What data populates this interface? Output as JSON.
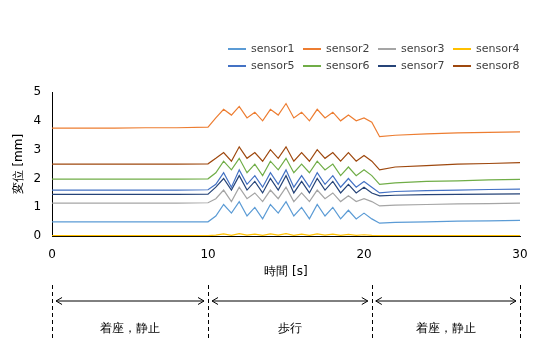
{
  "chart_data": {
    "type": "line",
    "x_label": "時間 [s]",
    "y_label": "変位 [mm]",
    "xlim": [
      0,
      30
    ],
    "xticks": [
      0,
      10,
      20,
      30
    ],
    "ylim": [
      0,
      5
    ],
    "yticks": [
      0,
      1,
      2,
      3,
      4,
      5
    ],
    "grid": false,
    "legend": "upper right",
    "x": [
      0,
      2,
      4,
      6,
      8,
      10,
      10.5,
      11,
      11.5,
      12,
      12.5,
      13,
      13.5,
      14,
      14.5,
      15,
      15.5,
      16,
      16.5,
      17,
      17.5,
      18,
      18.5,
      19,
      19.5,
      20,
      20.5,
      21,
      22,
      24,
      26,
      28,
      30
    ],
    "series": [
      {
        "name": "sensor1",
        "color": "#5b9bd5",
        "values": [
          0.5,
          0.5,
          0.5,
          0.5,
          0.5,
          0.5,
          0.7,
          1.1,
          0.8,
          1.2,
          0.7,
          1.0,
          0.6,
          1.1,
          0.8,
          1.2,
          0.7,
          1.0,
          0.6,
          1.1,
          0.7,
          1.0,
          0.6,
          0.9,
          0.6,
          0.8,
          0.6,
          0.45,
          0.48,
          0.5,
          0.52,
          0.53,
          0.55
        ]
      },
      {
        "name": "sensor2",
        "color": "#ed7d31",
        "values": [
          3.75,
          3.75,
          3.75,
          3.76,
          3.76,
          3.78,
          4.1,
          4.4,
          4.2,
          4.5,
          4.1,
          4.3,
          4.0,
          4.4,
          4.2,
          4.6,
          4.1,
          4.3,
          4.0,
          4.4,
          4.1,
          4.3,
          4.0,
          4.2,
          4.0,
          4.1,
          3.95,
          3.45,
          3.5,
          3.55,
          3.58,
          3.6,
          3.62
        ]
      },
      {
        "name": "sensor3",
        "color": "#a5a5a5",
        "values": [
          1.15,
          1.15,
          1.15,
          1.15,
          1.15,
          1.16,
          1.3,
          1.6,
          1.2,
          1.7,
          1.3,
          1.5,
          1.2,
          1.6,
          1.3,
          1.7,
          1.2,
          1.5,
          1.2,
          1.6,
          1.3,
          1.5,
          1.2,
          1.4,
          1.2,
          1.3,
          1.2,
          1.05,
          1.08,
          1.1,
          1.12,
          1.13,
          1.15
        ]
      },
      {
        "name": "sensor4",
        "color": "#ffc000",
        "values": [
          0.02,
          0.02,
          0.02,
          0.02,
          0.02,
          0.02,
          0.04,
          0.08,
          0.03,
          0.09,
          0.04,
          0.07,
          0.03,
          0.08,
          0.04,
          0.09,
          0.03,
          0.07,
          0.03,
          0.08,
          0.04,
          0.07,
          0.03,
          0.06,
          0.03,
          0.05,
          0.03,
          0.02,
          0.02,
          0.02,
          0.02,
          0.02,
          0.02
        ]
      },
      {
        "name": "sensor5",
        "color": "#4472c4",
        "values": [
          1.6,
          1.6,
          1.6,
          1.6,
          1.6,
          1.61,
          1.8,
          2.2,
          1.7,
          2.3,
          1.8,
          2.1,
          1.7,
          2.2,
          1.8,
          2.3,
          1.7,
          2.1,
          1.7,
          2.2,
          1.8,
          2.1,
          1.7,
          2.0,
          1.7,
          1.9,
          1.7,
          1.5,
          1.55,
          1.58,
          1.6,
          1.62,
          1.63
        ]
      },
      {
        "name": "sensor6",
        "color": "#70ad47",
        "values": [
          1.98,
          1.98,
          1.98,
          1.98,
          1.98,
          1.99,
          2.2,
          2.6,
          2.3,
          2.7,
          2.2,
          2.5,
          2.1,
          2.6,
          2.3,
          2.7,
          2.2,
          2.5,
          2.2,
          2.6,
          2.3,
          2.5,
          2.1,
          2.4,
          2.1,
          2.3,
          2.1,
          1.8,
          1.85,
          1.9,
          1.92,
          1.95,
          1.97
        ]
      },
      {
        "name": "sensor7",
        "color": "#264478",
        "values": [
          1.45,
          1.45,
          1.45,
          1.45,
          1.45,
          1.46,
          1.7,
          2.0,
          1.6,
          2.1,
          1.6,
          1.9,
          1.5,
          2.0,
          1.6,
          2.1,
          1.5,
          1.9,
          1.5,
          2.0,
          1.6,
          1.9,
          1.5,
          1.8,
          1.5,
          1.7,
          1.5,
          1.4,
          1.42,
          1.44,
          1.45,
          1.46,
          1.47
        ]
      },
      {
        "name": "sensor8",
        "color": "#9e480e",
        "values": [
          2.5,
          2.5,
          2.5,
          2.5,
          2.5,
          2.51,
          2.7,
          2.9,
          2.6,
          3.1,
          2.7,
          2.9,
          2.6,
          3.0,
          2.7,
          3.1,
          2.6,
          2.9,
          2.6,
          3.0,
          2.7,
          2.9,
          2.6,
          2.9,
          2.6,
          2.8,
          2.6,
          2.3,
          2.4,
          2.45,
          2.5,
          2.52,
          2.55
        ]
      }
    ],
    "annotations": [
      {
        "label": "着座，静止",
        "start": 0,
        "end": 10
      },
      {
        "label": "歩行",
        "start": 10,
        "end": 20.5
      },
      {
        "label": "着座，静止",
        "start": 20.5,
        "end": 30
      }
    ]
  }
}
